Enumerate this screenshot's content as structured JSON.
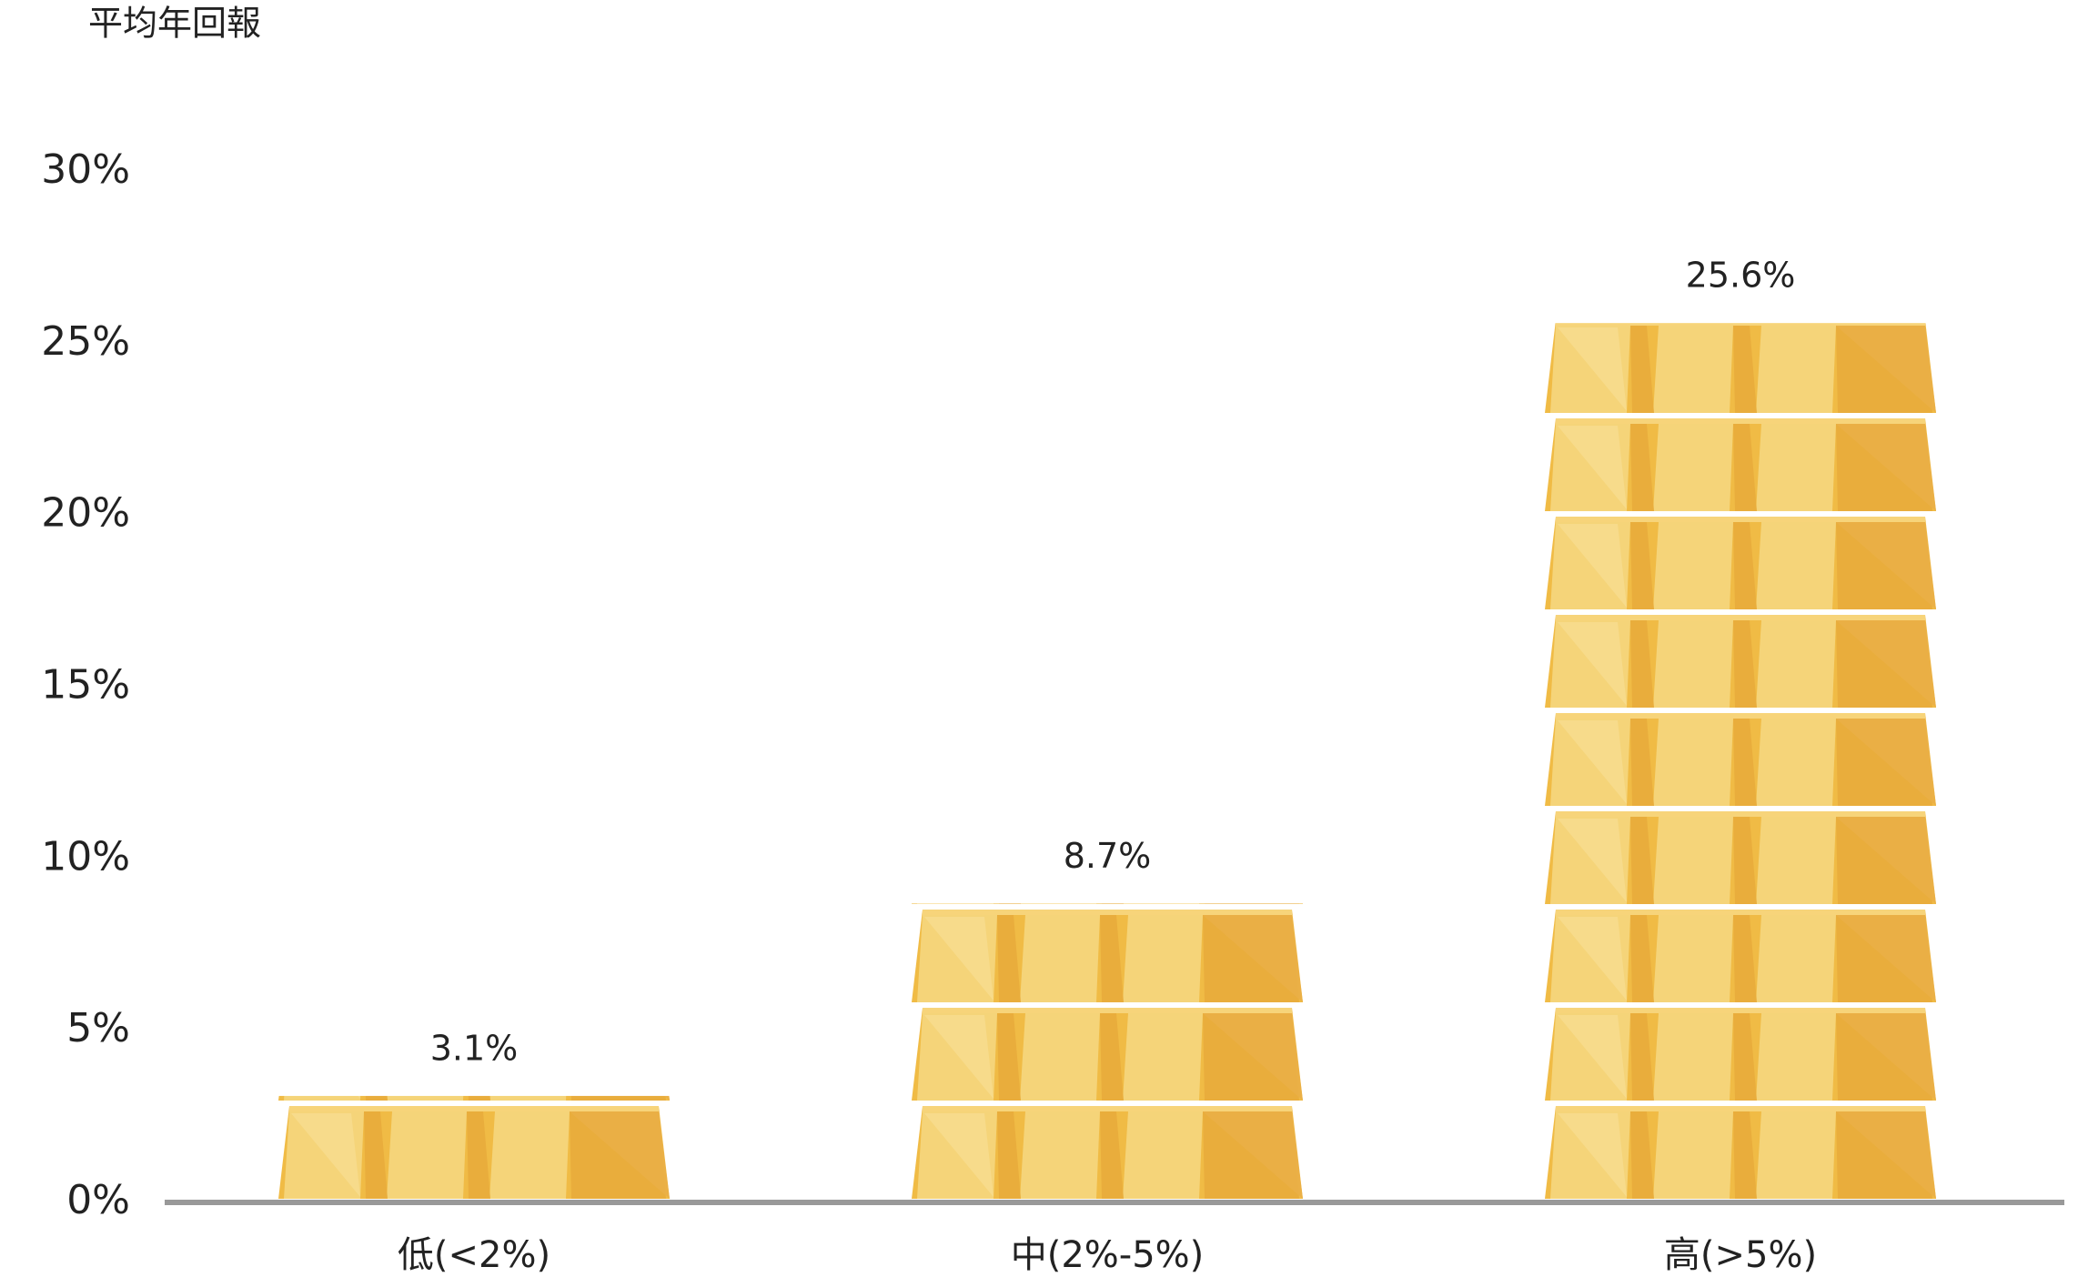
{
  "chart_data": {
    "type": "bar",
    "y_axis_label": "平均年回報",
    "categories": [
      "低(<2%)",
      "中(2%-5%)",
      "高(>5%)"
    ],
    "values": [
      3.1,
      8.7,
      25.6
    ],
    "value_labels": [
      "3.1%",
      "8.7%",
      "25.6%"
    ],
    "color": "#f0bb45",
    "ylim": [
      0,
      30
    ],
    "yticks": [
      {
        "value": 0,
        "label": "0%"
      },
      {
        "value": 5,
        "label": "5%"
      },
      {
        "value": 10,
        "label": "10%"
      },
      {
        "value": 15,
        "label": "15%"
      },
      {
        "value": 20,
        "label": "20%"
      },
      {
        "value": 25,
        "label": "25%"
      },
      {
        "value": 30,
        "label": "30%"
      }
    ]
  }
}
